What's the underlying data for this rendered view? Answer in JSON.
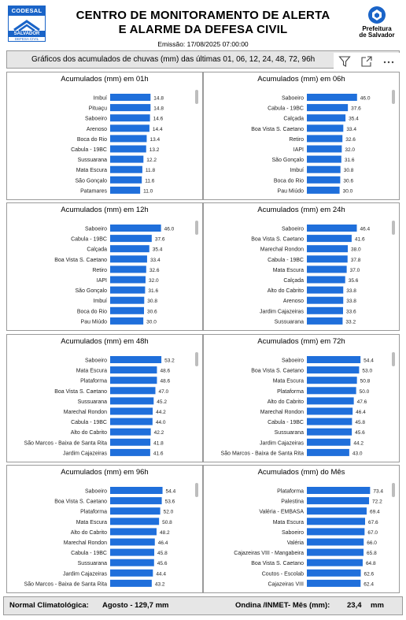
{
  "header": {
    "logo_left": {
      "top": "CODESAL",
      "mid": "SALVADOR",
      "bottom": "DEFESA CIVIL"
    },
    "title_line1": "CENTRO DE MONITORAMENTO DE ALERTA",
    "title_line2": "E ALARME DA DEFESA CIVIL",
    "emissao": "Emissão: 17/08/2025 07:00:00",
    "logo_right": {
      "line1": "Prefeitura",
      "line2": "de Salvador"
    }
  },
  "subtitle": "Gráficos dos acumulados de chuvas (mm) das últimas 01, 06, 12, 24, 48, 72, 96h",
  "toolbar": {
    "icons": [
      "filter-icon",
      "expand-icon",
      "more-options-icon"
    ]
  },
  "colors": {
    "bar": "#1f6fdb",
    "panel_border": "#9a9a9a",
    "bar_background": "#e6e6e6"
  },
  "chart_data": [
    {
      "type": "bar",
      "orientation": "horizontal",
      "title": "Acumulados (mm) em 01h",
      "categories": [
        "Imbuí",
        "Pituaçu",
        "Saboeiro",
        "Arenoso",
        "Boca do Rio",
        "Cabula - 19BC",
        "Sussuarana",
        "Mata Escura",
        "São Gonçalo",
        "Patamares"
      ],
      "values": [
        14.8,
        14.8,
        14.6,
        14.4,
        13.4,
        13.2,
        12.2,
        11.8,
        11.6,
        11.0
      ],
      "value_labels": [
        "14.8",
        "14.8",
        "14.6",
        "14.4",
        "13.4",
        "13.2",
        "12.2",
        "11.8",
        "11.6",
        "11.0"
      ],
      "xlim": [
        0,
        30
      ]
    },
    {
      "type": "bar",
      "orientation": "horizontal",
      "title": "Acumulados (mm) em 06h",
      "categories": [
        "Saboeiro",
        "Cabula - 19BC",
        "Calçada",
        "Boa Vista S. Caetano",
        "Retiro",
        "IAPI",
        "São Gonçalo",
        "Imbuí",
        "Boca do Rio",
        "Pau Miúdo"
      ],
      "values": [
        46.0,
        37.6,
        35.4,
        33.4,
        32.6,
        32.0,
        31.6,
        30.8,
        30.6,
        30.0
      ],
      "value_labels": [
        "46.0",
        "37.6",
        "35.4",
        "33.4",
        "32.6",
        "32.0",
        "31.6",
        "30.8",
        "30.6",
        "30.0"
      ],
      "xlim": [
        0,
        75
      ]
    },
    {
      "type": "bar",
      "orientation": "horizontal",
      "title": "Acumulados (mm) em 12h",
      "categories": [
        "Saboeiro",
        "Cabula - 19BC",
        "Calçada",
        "Boa Vista S. Caetano",
        "Retiro",
        "IAPI",
        "São Gonçalo",
        "Imbuí",
        "Boca do Rio",
        "Pau Miúdo"
      ],
      "values": [
        46.0,
        37.6,
        35.4,
        33.4,
        32.6,
        32.0,
        31.6,
        30.8,
        30.6,
        30.0
      ],
      "value_labels": [
        "46.0",
        "37.6",
        "35.4",
        "33.4",
        "32.6",
        "32.0",
        "31.6",
        "30.8",
        "30.6",
        "30.0"
      ],
      "xlim": [
        0,
        74
      ]
    },
    {
      "type": "bar",
      "orientation": "horizontal",
      "title": "Acumulados (mm) em 24h",
      "categories": [
        "Saboeiro",
        "Boa Vista S. Caetano",
        "Marechal Rondon",
        "Cabula - 19BC",
        "Mata Escura",
        "Calçada",
        "Alto do Cabrito",
        "Arenoso",
        "Jardim Cajazeiras",
        "Sussuarana"
      ],
      "values": [
        46.4,
        41.6,
        38.0,
        37.8,
        37.0,
        35.6,
        33.8,
        33.8,
        33.6,
        33.2
      ],
      "value_labels": [
        "46.4",
        "41.6",
        "38.0",
        "37.8",
        "37.0",
        "35.6",
        "33.8",
        "33.8",
        "33.6",
        "33.2"
      ],
      "xlim": [
        0,
        76
      ]
    },
    {
      "type": "bar",
      "orientation": "horizontal",
      "title": "Acumulados (mm) em 48h",
      "categories": [
        "Saboeiro",
        "Mata Escura",
        "Plataforma",
        "Boa Vista S. Caetano",
        "Sussuarana",
        "Marechal Rondon",
        "Cabula - 19BC",
        "Alto do Cabrito",
        "São Marcos - Baixa de Santa Rita",
        "Jardim Cajazeiras"
      ],
      "values": [
        53.2,
        48.6,
        48.6,
        47.0,
        45.2,
        44.2,
        44.0,
        42.2,
        41.8,
        41.6
      ],
      "value_labels": [
        "53.2",
        "48.6",
        "48.6",
        "47.0",
        "45.2",
        "44.2",
        "44.0",
        "42.2",
        "41.8",
        "41.6"
      ],
      "xlim": [
        0,
        85
      ]
    },
    {
      "type": "bar",
      "orientation": "horizontal",
      "title": "Acumulados (mm) em 72h",
      "categories": [
        "Saboeiro",
        "Boa Vista S. Caetano",
        "Mata Escura",
        "Plataforma",
        "Alto do Cabrito",
        "Marechal Rondon",
        "Cabula - 19BC",
        "Sussuarana",
        "Jardim Cajazeiras",
        "São Marcos - Baixa de Santa Rita"
      ],
      "values": [
        54.4,
        53.0,
        50.8,
        50.0,
        47.6,
        46.4,
        45.8,
        45.6,
        44.2,
        43.0
      ],
      "value_labels": [
        "54.4",
        "53.0",
        "50.8",
        "50.0",
        "47.6",
        "46.4",
        "45.8",
        "45.6",
        "44.2",
        "43.0"
      ],
      "xlim": [
        0,
        83
      ]
    },
    {
      "type": "bar",
      "orientation": "horizontal",
      "title": "Acumulados (mm) em 96h",
      "categories": [
        "Saboeiro",
        "Boa Vista S. Caetano",
        "Plataforma",
        "Mata Escura",
        "Alto do Cabrito",
        "Marechal Rondon",
        "Cabula - 19BC",
        "Sussuarana",
        "Jardim Cajazeiras",
        "São Marcos - Baixa de Santa Rita"
      ],
      "values": [
        54.4,
        53.6,
        52.0,
        50.8,
        48.2,
        46.4,
        45.8,
        45.6,
        44.4,
        43.2
      ],
      "value_labels": [
        "54.4",
        "53.6",
        "52.0",
        "50.8",
        "48.2",
        "46.4",
        "45.8",
        "45.6",
        "44.4",
        "43.2"
      ],
      "xlim": [
        0,
        85
      ]
    },
    {
      "type": "bar",
      "orientation": "horizontal",
      "title": "Acumulados (mm) do Mês",
      "categories": [
        "Plataforma",
        "Palestina",
        "Valéria - EMBASA",
        "Mata Escura",
        "Saboeiro",
        "Valéria",
        "Cajazeiras VIII - Mangabeira",
        "Boa Vista S. Caetano",
        "Coutos - Escolab",
        "Cajazeiras VIII"
      ],
      "values": [
        73.4,
        72.2,
        69.4,
        67.6,
        67.0,
        66.0,
        65.8,
        64.8,
        62.6,
        62.4
      ],
      "value_labels": [
        "73.4",
        "72.2",
        "69.4",
        "67.6",
        "67.0",
        "66.0",
        "65.8",
        "64.8",
        "62.6",
        "62.4"
      ],
      "xlim": [
        0,
        95
      ]
    }
  ],
  "footer": {
    "normal_label": "Normal Climatológica:",
    "normal_value": "Agosto - 129,7 mm",
    "ondina_label": "Ondina /INMET- Mês (mm):",
    "ondina_value": "23,4",
    "ondina_unit": "mm"
  }
}
